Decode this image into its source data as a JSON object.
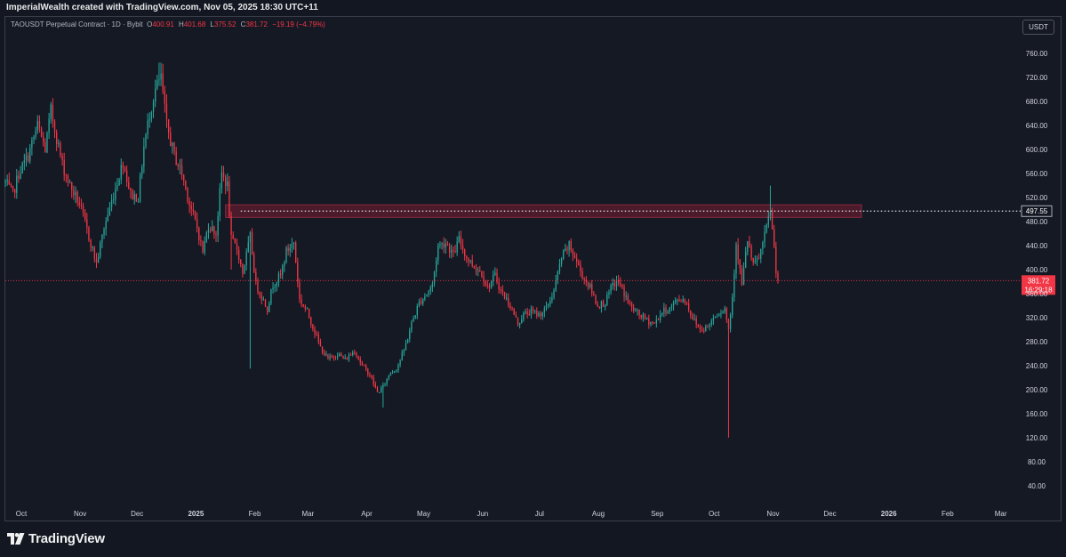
{
  "header": {
    "credit": "ImperialWealth created with TradingView.com, Nov 05, 2025 18:30 UTC+11"
  },
  "legend": {
    "symbol": "TAOUSDT Perpetual Contract · 1D · Bybit",
    "open_label": "O",
    "open": "400.91",
    "high_label": "H",
    "high": "401.68",
    "low_label": "L",
    "low": "375.52",
    "close_label": "C",
    "close": "381.72",
    "change": "−19.19 (−4.79%)"
  },
  "currency_button": "USDT",
  "footer": {
    "brand": "TradingView",
    "logo_icon": "tradingview-logo-icon"
  },
  "colors": {
    "background": "#131722",
    "up": "#26a69a",
    "down": "#f23645",
    "zone": "#5c1a2a",
    "text": "#d1d4dc"
  },
  "chart_data": {
    "type": "candlestick",
    "y_axis": {
      "ticks": [
        40,
        80,
        120,
        160,
        200,
        240,
        280,
        320,
        360,
        400,
        440,
        480,
        520,
        560,
        600,
        640,
        680,
        720,
        760
      ],
      "tick_labels": [
        "40.00",
        "80.00",
        "120.00",
        "160.00",
        "200.00",
        "240.00",
        "280.00",
        "320.00",
        "360.00",
        "400.00",
        "440.00",
        "480.00",
        "520.00",
        "560.00",
        "600.00",
        "640.00",
        "680.00",
        "720.00",
        "760.00"
      ],
      "range": [
        10,
        790
      ],
      "side": "right"
    },
    "x_axis": {
      "labels": [
        "Oct",
        "Nov",
        "Dec",
        "2025",
        "Feb",
        "Mar",
        "Apr",
        "May",
        "Jun",
        "Jul",
        "Aug",
        "Sep",
        "Oct",
        "Nov",
        "Dec",
        "2026",
        "Feb",
        "Mar"
      ],
      "label_dates": [
        "2024-10-01",
        "2024-11-01",
        "2024-12-01",
        "2025-01-01",
        "2025-02-01",
        "2025-03-01",
        "2025-04-01",
        "2025-05-01",
        "2025-06-01",
        "2025-07-01",
        "2025-08-01",
        "2025-09-01",
        "2025-10-01",
        "2025-11-01",
        "2025-12-01",
        "2026-01-01",
        "2026-02-01",
        "2026-03-01"
      ],
      "range": [
        "2024-09-24",
        "2026-03-11"
      ]
    },
    "resistance_zone": {
      "low": 487,
      "high": 508,
      "start": "2025-01-18",
      "end": "2025-12-19"
    },
    "horizontal_lines": [
      {
        "value": 497.55,
        "label": "497.55",
        "style": "dotted",
        "start": "2025-01-26"
      },
      {
        "value": 381.72,
        "label": "381.72",
        "sublabel": "16:29:18",
        "style": "dotted-red"
      }
    ],
    "last_price": 381.72,
    "anchors": [
      [
        "2024-09-24",
        545
      ],
      [
        "2024-09-28",
        525
      ],
      [
        "2024-10-01",
        560
      ],
      [
        "2024-10-06",
        590
      ],
      [
        "2024-10-11",
        640
      ],
      [
        "2024-10-15",
        600
      ],
      [
        "2024-10-18",
        665
      ],
      [
        "2024-10-24",
        575
      ],
      [
        "2024-10-28",
        540
      ],
      [
        "2024-11-02",
        510
      ],
      [
        "2024-11-07",
        455
      ],
      [
        "2024-11-11",
        410
      ],
      [
        "2024-11-15",
        470
      ],
      [
        "2024-11-20",
        525
      ],
      [
        "2024-11-25",
        580
      ],
      [
        "2024-11-29",
        525
      ],
      [
        "2024-12-03",
        520
      ],
      [
        "2024-12-06",
        605
      ],
      [
        "2024-12-09",
        660
      ],
      [
        "2024-12-12",
        700
      ],
      [
        "2024-12-15",
        720
      ],
      [
        "2024-12-18",
        640
      ],
      [
        "2024-12-22",
        590
      ],
      [
        "2024-12-26",
        560
      ],
      [
        "2024-12-30",
        510
      ],
      [
        "2025-01-03",
        470
      ],
      [
        "2025-01-06",
        430
      ],
      [
        "2025-01-09",
        475
      ],
      [
        "2025-01-13",
        460
      ],
      [
        "2025-01-16",
        560
      ],
      [
        "2025-01-19",
        540
      ],
      [
        "2025-01-21",
        450
      ],
      [
        "2025-01-24",
        435
      ],
      [
        "2025-01-27",
        395
      ],
      [
        "2025-01-31",
        455
      ],
      [
        "2025-02-03",
        375
      ],
      [
        "2025-02-06",
        355
      ],
      [
        "2025-02-09",
        335
      ],
      [
        "2025-02-12",
        375
      ],
      [
        "2025-02-16",
        390
      ],
      [
        "2025-02-19",
        430
      ],
      [
        "2025-02-23",
        445
      ],
      [
        "2025-02-26",
        350
      ],
      [
        "2025-03-02",
        330
      ],
      [
        "2025-03-05",
        305
      ],
      [
        "2025-03-09",
        270
      ],
      [
        "2025-03-13",
        250
      ],
      [
        "2025-03-18",
        260
      ],
      [
        "2025-03-22",
        250
      ],
      [
        "2025-03-27",
        265
      ],
      [
        "2025-03-31",
        240
      ],
      [
        "2025-04-04",
        225
      ],
      [
        "2025-04-08",
        195
      ],
      [
        "2025-04-11",
        205
      ],
      [
        "2025-04-15",
        230
      ],
      [
        "2025-04-18",
        235
      ],
      [
        "2025-04-22",
        265
      ],
      [
        "2025-04-26",
        310
      ],
      [
        "2025-04-30",
        345
      ],
      [
        "2025-05-04",
        360
      ],
      [
        "2025-05-07",
        375
      ],
      [
        "2025-05-10",
        440
      ],
      [
        "2025-05-14",
        445
      ],
      [
        "2025-05-18",
        425
      ],
      [
        "2025-05-21",
        450
      ],
      [
        "2025-05-25",
        420
      ],
      [
        "2025-05-29",
        405
      ],
      [
        "2025-06-02",
        395
      ],
      [
        "2025-06-05",
        370
      ],
      [
        "2025-06-09",
        390
      ],
      [
        "2025-06-12",
        365
      ],
      [
        "2025-06-17",
        340
      ],
      [
        "2025-06-21",
        310
      ],
      [
        "2025-06-24",
        325
      ],
      [
        "2025-06-28",
        330
      ],
      [
        "2025-07-02",
        325
      ],
      [
        "2025-07-06",
        335
      ],
      [
        "2025-07-10",
        365
      ],
      [
        "2025-07-14",
        420
      ],
      [
        "2025-07-18",
        440
      ],
      [
        "2025-07-21",
        420
      ],
      [
        "2025-07-25",
        390
      ],
      [
        "2025-07-29",
        370
      ],
      [
        "2025-08-02",
        340
      ],
      [
        "2025-08-06",
        345
      ],
      [
        "2025-08-10",
        375
      ],
      [
        "2025-08-13",
        380
      ],
      [
        "2025-08-16",
        360
      ],
      [
        "2025-08-20",
        335
      ],
      [
        "2025-08-24",
        325
      ],
      [
        "2025-08-28",
        315
      ],
      [
        "2025-09-01",
        310
      ],
      [
        "2025-09-05",
        330
      ],
      [
        "2025-09-09",
        335
      ],
      [
        "2025-09-13",
        350
      ],
      [
        "2025-09-17",
        350
      ],
      [
        "2025-09-21",
        320
      ],
      [
        "2025-09-25",
        300
      ],
      [
        "2025-09-29",
        305
      ],
      [
        "2025-10-03",
        325
      ],
      [
        "2025-10-08",
        335
      ],
      [
        "2025-10-10",
        300
      ],
      [
        "2025-10-12",
        355
      ],
      [
        "2025-10-14",
        445
      ],
      [
        "2025-10-17",
        375
      ],
      [
        "2025-10-20",
        450
      ],
      [
        "2025-10-23",
        405
      ],
      [
        "2025-10-26",
        420
      ],
      [
        "2025-10-29",
        455
      ],
      [
        "2025-11-01",
        500
      ],
      [
        "2025-11-02",
        465
      ],
      [
        "2025-11-03",
        435
      ],
      [
        "2025-11-04",
        401
      ],
      [
        "2025-11-05",
        381.72
      ]
    ],
    "wicks": [
      [
        "2025-10-10",
        120
      ],
      [
        "2025-01-31",
        235
      ],
      [
        "2025-04-11",
        170
      ],
      [
        "2025-11-01",
        540
      ],
      [
        "2024-12-14",
        745
      ],
      [
        "2025-01-21",
        400
      ]
    ]
  }
}
